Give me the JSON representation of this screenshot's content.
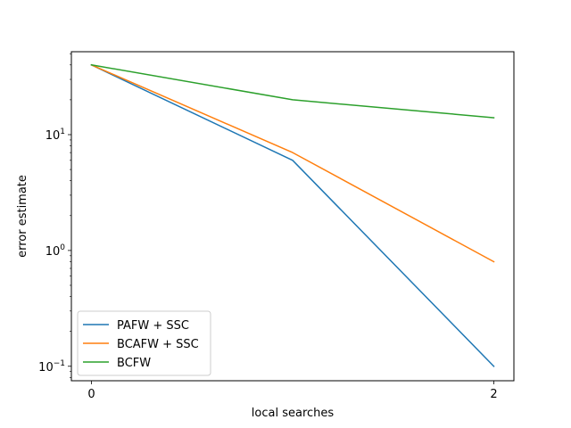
{
  "chart_data": {
    "type": "line",
    "title": "",
    "xlabel": "local searches",
    "ylabel": "error estimate",
    "x": [
      0,
      1,
      2
    ],
    "x_ticks": [
      0,
      2
    ],
    "x_tick_labels": [
      "0",
      "2"
    ],
    "xlim": [
      -0.1,
      2.1
    ],
    "y_scale": "log",
    "ylim": [
      0.075,
      52
    ],
    "y_ticks": [
      0.1,
      1,
      10
    ],
    "y_tick_labels": [
      {
        "base": "10",
        "exp": "−1"
      },
      {
        "base": "10",
        "exp": "0"
      },
      {
        "base": "10",
        "exp": "1"
      }
    ],
    "series": [
      {
        "name": "PAFW + SSC",
        "color": "#1f77b4",
        "values": [
          40,
          6,
          0.1
        ]
      },
      {
        "name": "BCAFW + SSC",
        "color": "#ff7f0e",
        "values": [
          40,
          7,
          0.8
        ]
      },
      {
        "name": "BCFW",
        "color": "#2ca02c",
        "values": [
          40,
          20,
          14
        ]
      }
    ],
    "legend_position": "lower-left",
    "grid": false
  }
}
